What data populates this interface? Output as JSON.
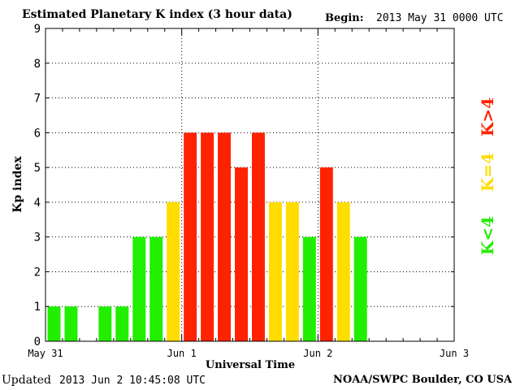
{
  "header": {
    "title": "Estimated Planetary K index (3 hour data)",
    "begin_label": "Begin:",
    "begin_value": "2013 May 31 0000 UTC"
  },
  "footer": {
    "updated_label": "Updated",
    "updated_value": "2013 Jun  2 10:45:08 UTC",
    "credit": "NOAA/SWPC Boulder, CO USA"
  },
  "colors": {
    "low": "#22ee00",
    "equal": "#ffdd00",
    "high": "#ff2200",
    "grid": "#000000"
  },
  "chart_data": {
    "type": "bar",
    "title": "Estimated Planetary K index (3 hour data)",
    "xlabel": "Universal Time",
    "ylabel": "Kp index",
    "ylim": [
      0,
      9
    ],
    "yticks": [
      0,
      1,
      2,
      3,
      4,
      5,
      6,
      7,
      8,
      9
    ],
    "x_range_hours": [
      0,
      72
    ],
    "x_tick_labels": [
      {
        "label": "May 31",
        "hour": 0
      },
      {
        "label": "Jun 1",
        "hour": 24
      },
      {
        "label": "Jun 2",
        "hour": 48
      },
      {
        "label": "Jun 3",
        "hour": 72
      }
    ],
    "interval_hours": 3,
    "values": [
      1,
      1,
      null,
      1,
      1,
      3,
      3,
      4,
      6,
      6,
      6,
      5,
      6,
      4,
      4,
      3,
      5,
      4,
      3
    ],
    "legend": [
      {
        "label": "K<4",
        "color": "#22ee00"
      },
      {
        "label": "K=4",
        "color": "#ffdd00"
      },
      {
        "label": "K>4",
        "color": "#ff2200"
      }
    ],
    "legend_position": "right",
    "grid": true
  }
}
